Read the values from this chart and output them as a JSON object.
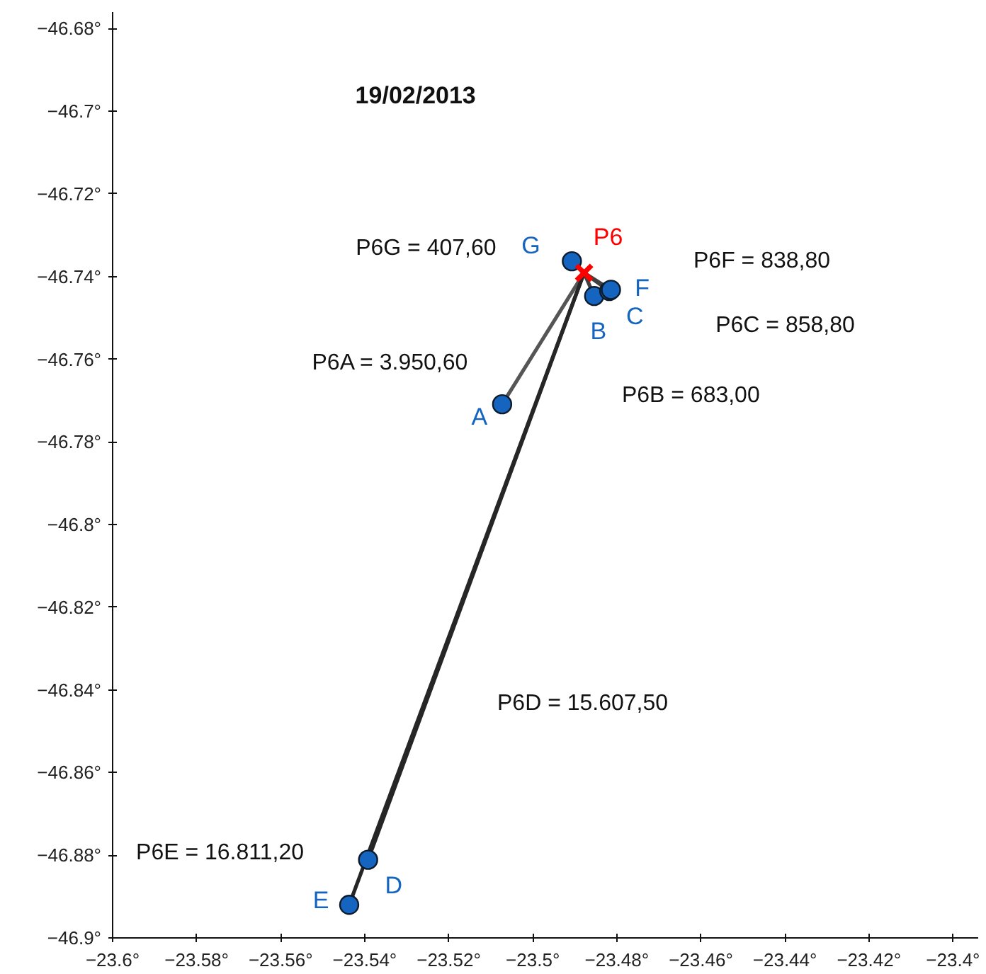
{
  "chart_data": {
    "type": "scatter",
    "title": "19/02/2013",
    "xlim": [
      -23.6,
      -23.394
    ],
    "ylim": [
      -46.9,
      -46.676
    ],
    "xticks": [
      {
        "value": -23.6,
        "label": "−23.6°"
      },
      {
        "value": -23.58,
        "label": "−23.58°"
      },
      {
        "value": -23.56,
        "label": "−23.56°"
      },
      {
        "value": -23.54,
        "label": "−23.54°"
      },
      {
        "value": -23.52,
        "label": "−23.52°"
      },
      {
        "value": -23.5,
        "label": "−23.5°"
      },
      {
        "value": -23.48,
        "label": "−23.48°"
      },
      {
        "value": -23.46,
        "label": "−23.46°"
      },
      {
        "value": -23.44,
        "label": "−23.44°"
      },
      {
        "value": -23.42,
        "label": "−23.42°"
      },
      {
        "value": -23.4,
        "label": "−23.4°"
      }
    ],
    "yticks": [
      {
        "value": -46.68,
        "label": "−46.68°"
      },
      {
        "value": -46.7,
        "label": "−46.7°"
      },
      {
        "value": -46.72,
        "label": "−46.72°"
      },
      {
        "value": -46.74,
        "label": "−46.74°"
      },
      {
        "value": -46.76,
        "label": "−46.76°"
      },
      {
        "value": -46.78,
        "label": "−46.78°"
      },
      {
        "value": -46.8,
        "label": "−46.8°"
      },
      {
        "value": -46.82,
        "label": "−46.82°"
      },
      {
        "value": -46.84,
        "label": "−46.84°"
      },
      {
        "value": -46.86,
        "label": "−46.86°"
      },
      {
        "value": -46.88,
        "label": "−46.88°"
      },
      {
        "value": -46.9,
        "label": "−46.9°"
      }
    ],
    "series": [
      {
        "type": "line",
        "color": "#555555",
        "x": [
          -23.4878,
          -23.5073
        ],
        "values": [
          -46.7391,
          -46.7709
        ]
      },
      {
        "type": "line",
        "color": "#404040",
        "x": [
          -23.4878,
          -23.4854
        ],
        "values": [
          -46.7391,
          -46.7447
        ]
      },
      {
        "type": "line",
        "color": "#404040",
        "x": [
          -23.4878,
          -23.4818
        ],
        "values": [
          -46.7391,
          -46.7435
        ]
      },
      {
        "type": "line",
        "color": "#262626",
        "x": [
          -23.4878,
          -23.5392
        ],
        "values": [
          -46.7391,
          -46.8811
        ]
      },
      {
        "type": "line",
        "color": "#262626",
        "x": [
          -23.4878,
          -23.5437
        ],
        "values": [
          -46.7391,
          -46.892
        ]
      },
      {
        "type": "line",
        "color": "#404040",
        "x": [
          -23.4878,
          -23.4814
        ],
        "values": [
          -46.7391,
          -46.7432
        ]
      },
      {
        "color": "#1565c0",
        "marker": "circle",
        "x": [
          -23.5073,
          -23.4854,
          -23.4818,
          -23.5392,
          -23.5437,
          -23.4814,
          -23.4907
        ],
        "values": [
          -46.7709,
          -46.7447,
          -46.7435,
          -46.8811,
          -46.892,
          -46.7432,
          -46.7363
        ],
        "value_labels": [
          "A",
          "B",
          "C",
          "D",
          "E",
          "F",
          "G"
        ]
      },
      {
        "color": "#ff0000",
        "marker": "cross",
        "x": [
          -23.4878
        ],
        "values": [
          -46.7391
        ],
        "value_labels": [
          "P6"
        ]
      }
    ],
    "annotations": [
      "P6G = 407,60",
      "P6F = 838,80",
      "P6C = 858,80",
      "P6A = 3.950,60",
      "P6B = 683,00",
      "P6D = 15.607,50",
      "P6E = 16.811,20"
    ]
  }
}
